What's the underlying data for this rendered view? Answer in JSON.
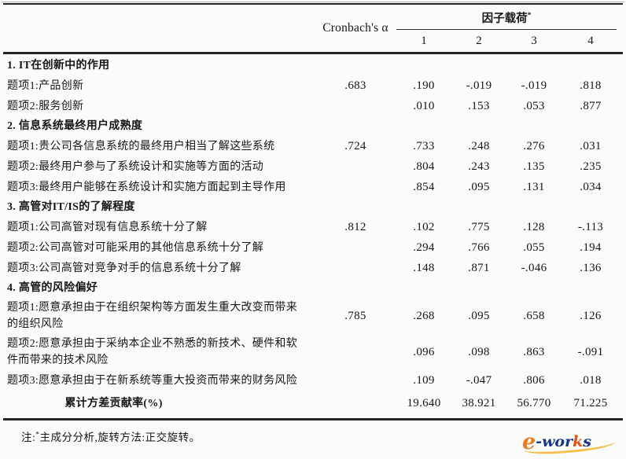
{
  "table": {
    "header": {
      "cronbach": "Cronbach's α",
      "factor_title": "因子载荷",
      "factor_sup": "*",
      "factor_cols": [
        "1",
        "2",
        "3",
        "4"
      ]
    },
    "rows": [
      {
        "type": "section",
        "label": "1. IT在创新中的作用"
      },
      {
        "type": "item",
        "label": "题项1:产品创新",
        "cronbach": ".683",
        "f": [
          ".190",
          "-.019",
          "-.019",
          ".818"
        ]
      },
      {
        "type": "item",
        "label": "题项2:服务创新",
        "cronbach": "",
        "f": [
          ".010",
          ".153",
          ".053",
          ".877"
        ]
      },
      {
        "type": "section",
        "label": "2. 信息系统最终用户成熟度"
      },
      {
        "type": "item",
        "label": "题项1:贵公司各信息系统的最终用户相当了解这些系统",
        "cronbach": ".724",
        "f": [
          ".733",
          ".248",
          ".276",
          ".031"
        ]
      },
      {
        "type": "item",
        "label": "题项2:最终用户参与了系统设计和实施等方面的活动",
        "cronbach": "",
        "f": [
          ".804",
          ".243",
          ".135",
          ".235"
        ]
      },
      {
        "type": "item",
        "label": "题项3:最终用户能够在系统设计和实施方面起到主导作用",
        "cronbach": "",
        "f": [
          ".854",
          ".095",
          ".131",
          ".034"
        ]
      },
      {
        "type": "section",
        "label": "3. 高管对IT/IS的了解程度"
      },
      {
        "type": "item",
        "label": "题项1:公司高管对现有信息系统十分了解",
        "cronbach": ".812",
        "f": [
          ".102",
          ".775",
          ".128",
          "-.113"
        ]
      },
      {
        "type": "item",
        "label": "题项2:公司高管对可能采用的其他信息系统十分了解",
        "cronbach": "",
        "f": [
          ".294",
          ".766",
          ".055",
          ".194"
        ]
      },
      {
        "type": "item",
        "label": "题项3:公司高管对竞争对手的信息系统十分了解",
        "cronbach": "",
        "f": [
          ".148",
          ".871",
          "-.046",
          ".136"
        ]
      },
      {
        "type": "section",
        "label": "4. 高管的风险偏好"
      },
      {
        "type": "item",
        "label": "题项1:愿意承担由于在组织架构等方面发生重大改变而带来的组织风险",
        "cronbach": ".785",
        "f": [
          ".268",
          ".095",
          ".658",
          ".126"
        ]
      },
      {
        "type": "item",
        "label": "题项2:愿意承担由于采纳本企业不熟悉的新技术、硬件和软件而带来的技术风险",
        "cronbach": "",
        "f": [
          ".096",
          ".098",
          ".863",
          "-.091"
        ]
      },
      {
        "type": "item",
        "label": "题项3:愿意承担由于在新系统等重大投资而带来的财务风险",
        "cronbach": "",
        "f": [
          ".109",
          "-.047",
          ".806",
          ".018"
        ]
      },
      {
        "type": "footer",
        "label": "累计方差贡献率(%)",
        "cronbach": "",
        "f": [
          "19.640",
          "38.921",
          "56.770",
          "71.225"
        ]
      }
    ],
    "note": {
      "prefix": "注:",
      "sup": "*",
      "text": "主成分分析,旋转方法:正交旋转。"
    }
  },
  "watermark": {
    "e": "e",
    "wor": "-wor",
    "k": "k",
    "s": "s"
  }
}
